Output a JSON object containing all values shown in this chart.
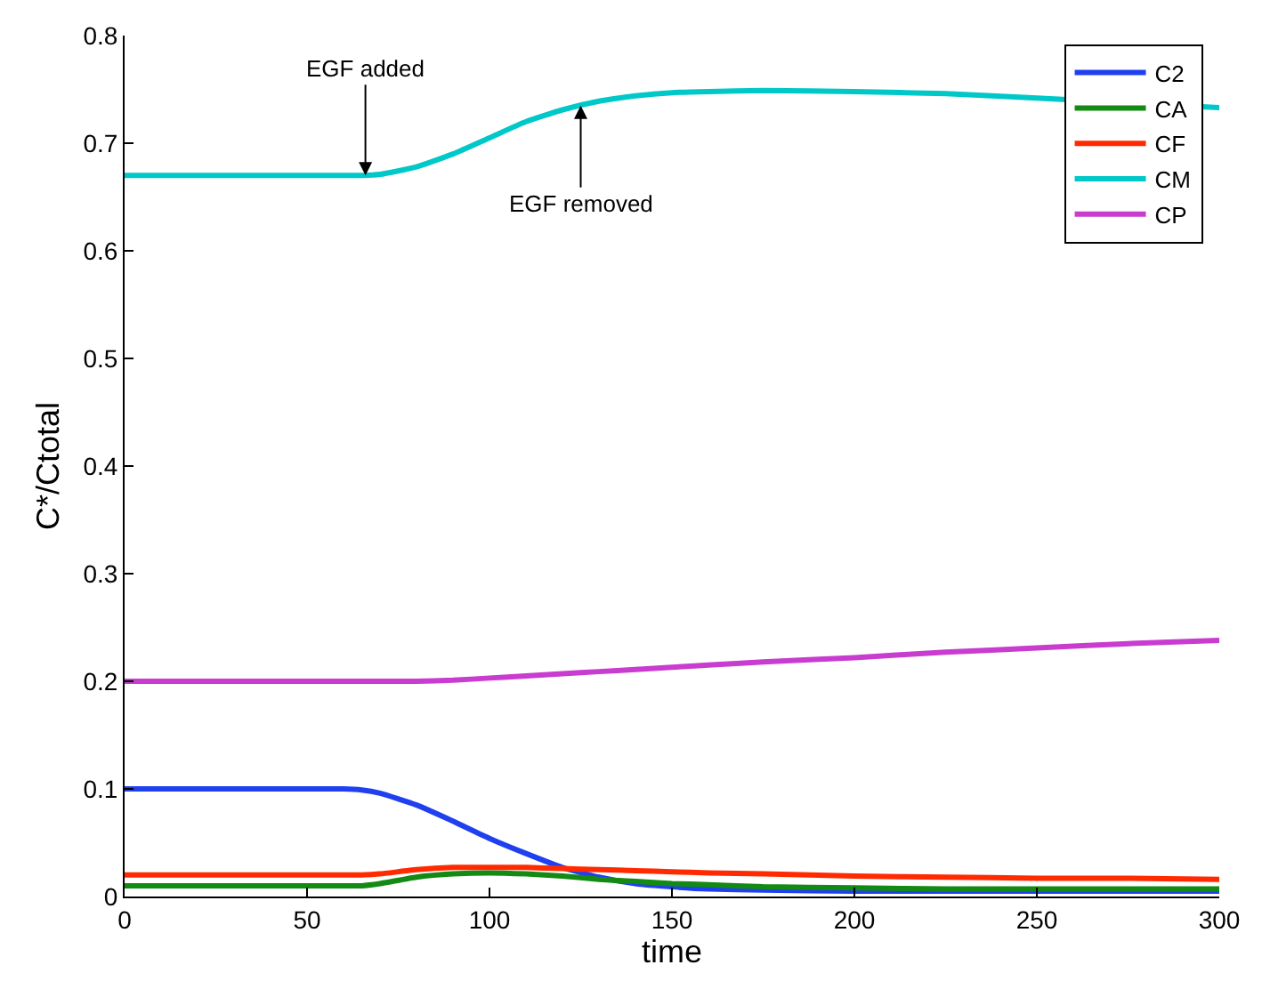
{
  "chart_data": {
    "type": "line",
    "xlabel": "time",
    "ylabel": "C*/Ctotal",
    "x": [
      0,
      20,
      40,
      60,
      65,
      70,
      80,
      90,
      100,
      110,
      120,
      130,
      140,
      150,
      160,
      175,
      200,
      225,
      250,
      275,
      300
    ],
    "series": [
      {
        "name": "C2",
        "color": "#2040f0",
        "values": [
          0.1,
          0.1,
          0.1,
          0.1,
          0.099,
          0.096,
          0.085,
          0.07,
          0.054,
          0.04,
          0.027,
          0.018,
          0.012,
          0.009,
          0.007,
          0.006,
          0.005,
          0.005,
          0.005,
          0.005,
          0.005
        ]
      },
      {
        "name": "CA",
        "color": "#138a13",
        "values": [
          0.01,
          0.01,
          0.01,
          0.01,
          0.01,
          0.012,
          0.018,
          0.021,
          0.022,
          0.021,
          0.019,
          0.016,
          0.014,
          0.012,
          0.011,
          0.009,
          0.008,
          0.007,
          0.007,
          0.007,
          0.007
        ]
      },
      {
        "name": "CF",
        "color": "#ff2a00",
        "values": [
          0.02,
          0.02,
          0.02,
          0.02,
          0.02,
          0.021,
          0.025,
          0.027,
          0.027,
          0.027,
          0.026,
          0.025,
          0.024,
          0.023,
          0.022,
          0.021,
          0.019,
          0.018,
          0.017,
          0.017,
          0.016
        ]
      },
      {
        "name": "CM",
        "color": "#00c8c8",
        "values": [
          0.67,
          0.67,
          0.67,
          0.67,
          0.67,
          0.671,
          0.678,
          0.69,
          0.705,
          0.72,
          0.731,
          0.739,
          0.744,
          0.747,
          0.748,
          0.749,
          0.748,
          0.746,
          0.742,
          null,
          0.733
        ]
      },
      {
        "name": "CP",
        "color": "#c83cd0",
        "values": [
          0.2,
          0.2,
          0.2,
          0.2,
          0.2,
          0.2,
          0.2,
          0.201,
          0.203,
          0.205,
          0.207,
          0.209,
          0.211,
          0.213,
          0.215,
          0.218,
          0.222,
          0.227,
          0.231,
          0.235,
          0.238
        ]
      }
    ],
    "annotations": [
      {
        "text": "EGF added",
        "x": 66,
        "y": 0.67
      },
      {
        "text": "EGF removed",
        "x": 125,
        "y": 0.735
      }
    ],
    "xlim": [
      0,
      300
    ],
    "xticks": [
      0,
      50,
      100,
      150,
      200,
      250,
      300
    ],
    "ylim": [
      0,
      0.8
    ],
    "yticks": [
      0,
      0.1,
      0.2,
      0.3,
      0.4,
      0.5,
      0.6,
      0.7,
      0.8
    ],
    "legend": "top right"
  }
}
